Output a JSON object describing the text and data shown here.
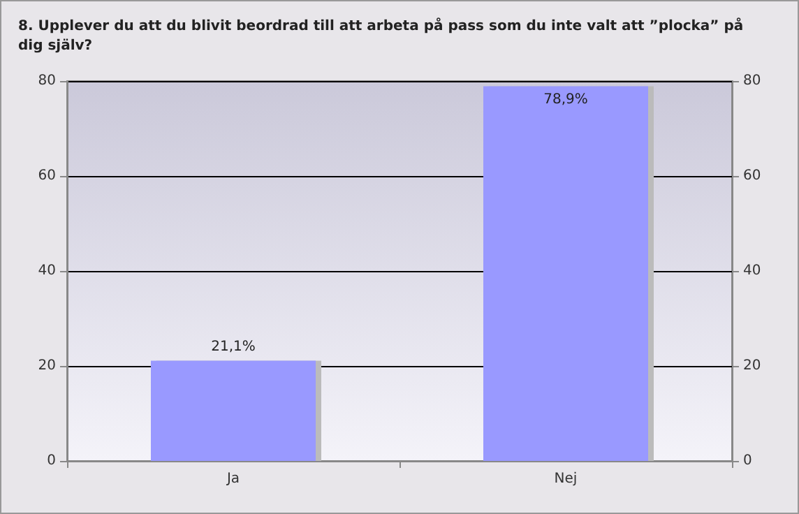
{
  "chart_data": {
    "type": "bar",
    "title": "8. Upplever du att du blivit beordrad till att arbeta på pass som du inte valt att ”plocka” på dig själv?",
    "categories": [
      "Ja",
      "Nej"
    ],
    "values": [
      21.1,
      78.9
    ],
    "value_labels": [
      "21,1%",
      "78,9%"
    ],
    "color": "#9999ff",
    "ylim": [
      0,
      80
    ],
    "yticks": [
      0,
      20,
      40,
      60,
      80
    ],
    "y2lim": [
      0,
      80
    ],
    "y2ticks": [
      0,
      20,
      40,
      60,
      80
    ],
    "grid": "y"
  }
}
